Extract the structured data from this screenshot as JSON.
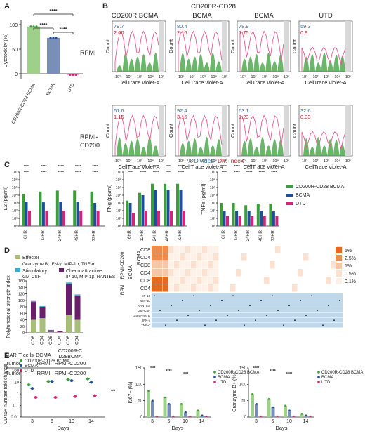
{
  "panel_letters": [
    "A",
    "B",
    "C",
    "D",
    "E"
  ],
  "colors": {
    "green": "#3a9e3a",
    "light_green": "#9fd08a",
    "blue": "#1f4e9a",
    "slate": "#7a8fb8",
    "magenta": "#d6237a",
    "pink": "#e8598f",
    "orange_dark": "#e66a1e",
    "orange_light": "#f6c7a6",
    "effector": "#a8bf7a",
    "chemo": "#6b1f6a",
    "stim": "#3fa9d8",
    "band_blue": "#bfd9ec",
    "axis": "#222222",
    "idx_blue": "#2a6db5",
    "idx_red": "#c0202c"
  },
  "panelA": {
    "ylabel": "Cytotoxicity (%)",
    "categories": [
      "CD200R-CD28 BCMA",
      "BCMA",
      "UTD"
    ],
    "yticks": [
      "100",
      "50",
      "0"
    ],
    "sig": [
      "****",
      "****",
      "****"
    ]
  },
  "panelB": {
    "top_title": "CD200R-CD28",
    "col_titles": [
      "CD200R BCMA",
      "BCMA",
      "BCMA",
      "UTD"
    ],
    "row_labels": [
      "RPMI",
      "RPMI-\nCD200"
    ],
    "xlabel": "CellTrace violet-A",
    "ylabel": "Count",
    "xticks": [
      "10¹",
      "10²",
      "10³",
      "10⁴",
      "10⁵"
    ],
    "blue_vals": [
      "79.7",
      "80.4",
      "78.9",
      "59.3",
      "61.6",
      "92.4",
      "63.1",
      "32.6"
    ],
    "red_vals": [
      "2.00",
      "2.16",
      "1.75",
      "0.9",
      "1.15",
      "3.15",
      "1.23",
      "0.33"
    ],
    "legend_divided": "% Divided",
    "legend_index": "Div. Index"
  },
  "panelC": {
    "ylabels": [
      "IL2 (pg/ml)",
      "IFNg (pg/ml)",
      "TNFa (pg/ml)"
    ],
    "times": [
      "6HR",
      "12HR",
      "24HR",
      "48HR",
      "72HR"
    ],
    "yticks": [
      "10⁷",
      "10⁶",
      "10⁵",
      "10⁴",
      "10³",
      "10²",
      "10¹",
      "10⁰"
    ],
    "legend": [
      "CD200R-CD28 BCMA",
      "BCMA",
      "UTD"
    ],
    "sig": "****"
  },
  "chart_data": [
    {
      "type": "bar",
      "panel": "A",
      "categories": [
        "CD200R-CD28 BCMA",
        "BCMA",
        "UTD"
      ],
      "values": [
        96,
        73,
        -2
      ],
      "ylabel": "Cytotoxicity (%)",
      "ylim": [
        -10,
        110
      ]
    },
    {
      "type": "bar",
      "panel": "C-IL2",
      "categories": [
        "6HR",
        "12HR",
        "24HR",
        "48HR",
        "72HR"
      ],
      "series": [
        {
          "name": "CD200R-CD28 BCMA",
          "values": [
            15000,
            30000,
            40000,
            40000,
            30000
          ]
        },
        {
          "name": "BCMA",
          "values": [
            1500,
            1200,
            1300,
            1500,
            1000
          ]
        },
        {
          "name": "UTD",
          "values": [
            100,
            100,
            100,
            100,
            100
          ]
        }
      ],
      "ylabel": "IL2 (pg/ml)",
      "ylim": [
        1,
        10000000
      ],
      "log": true
    },
    {
      "type": "bar",
      "panel": "C-IFNg",
      "categories": [
        "6HR",
        "12HR",
        "24HR",
        "48HR",
        "72HR"
      ],
      "series": [
        {
          "name": "CD200R-CD28 BCMA",
          "values": [
            2000,
            20000,
            300000,
            300000,
            300000
          ]
        },
        {
          "name": "BCMA",
          "values": [
            1000,
            10000,
            50000,
            50000,
            50000
          ]
        },
        {
          "name": "UTD",
          "values": [
            50,
            100,
            100,
            100,
            100
          ]
        }
      ],
      "ylabel": "IFNg (pg/ml)",
      "ylim": [
        1,
        10000000
      ],
      "log": true
    },
    {
      "type": "bar",
      "panel": "C-TNFa",
      "categories": [
        "6HR",
        "12HR",
        "24HR",
        "48HR",
        "72HR"
      ],
      "series": [
        {
          "name": "CD200R-CD28 BCMA",
          "values": [
            1000,
            1000,
            500,
            800,
            800
          ]
        },
        {
          "name": "BCMA",
          "values": [
            100,
            100,
            100,
            100,
            80
          ]
        },
        {
          "name": "UTD",
          "values": [
            20,
            20,
            20,
            20,
            20
          ]
        }
      ],
      "ylabel": "TNFa (pg/ml)",
      "ylim": [
        1,
        10000000
      ],
      "log": true
    },
    {
      "type": "bar",
      "panel": "D",
      "categories": [
        "CD8",
        "CD4",
        "CD8",
        "CD4",
        "CD8",
        "CD4"
      ],
      "series": [
        {
          "name": "Effector",
          "values": [
            40,
            45,
            3,
            2,
            55,
            40
          ]
        },
        {
          "name": "Chemoattractive",
          "values": [
            55,
            35,
            5,
            3,
            95,
            75
          ]
        },
        {
          "name": "Stimulatory",
          "values": [
            3,
            2,
            1,
            1,
            5,
            3
          ]
        }
      ],
      "ylabel": "Polyfunctional strength index",
      "ylim": [
        0,
        160
      ]
    },
    {
      "type": "scatter",
      "panel": "E-CD45",
      "x": [
        3,
        6,
        10,
        14
      ],
      "series": [
        {
          "name": "CD200R-CD28 BCMA",
          "values": [
            6,
            12,
            18,
            20
          ]
        },
        {
          "name": "BCMA",
          "values": [
            3,
            12,
            14,
            10
          ]
        },
        {
          "name": "UTD",
          "values": [
            0.5,
            0.5,
            0.6,
            0.7
          ]
        }
      ],
      "ylabel": "CD45+ number fold change",
      "xlabel": "Days",
      "ylim": [
        0.01,
        100
      ],
      "log": true
    },
    {
      "type": "bar",
      "panel": "E-Ki67",
      "categories": [
        "3",
        "6",
        "10",
        "14"
      ],
      "series": [
        {
          "name": "CD200R-CD28 BCMA",
          "values": [
            80,
            60,
            40,
            20
          ]
        },
        {
          "name": "BCMA",
          "values": [
            50,
            40,
            15,
            5
          ]
        },
        {
          "name": "UTD",
          "values": [
            2,
            2,
            2,
            2
          ]
        }
      ],
      "ylabel": "Ki67+ (%)",
      "xlabel": "Days",
      "ylim": [
        0,
        150
      ]
    },
    {
      "type": "bar",
      "panel": "E-GranzymeB",
      "categories": [
        "3",
        "6",
        "10",
        "14"
      ],
      "series": [
        {
          "name": "CD200R-CD28 BCMA",
          "values": [
            70,
            55,
            35,
            10
          ]
        },
        {
          "name": "BCMA",
          "values": [
            40,
            30,
            20,
            5
          ]
        },
        {
          "name": "UTD",
          "values": [
            2,
            2,
            2,
            2
          ]
        }
      ],
      "ylabel": "Granzyme B+ (%)",
      "xlabel": "Days",
      "ylim": [
        0,
        150
      ]
    }
  ],
  "panelD": {
    "legend": [
      {
        "name": "Effector",
        "detail": "Granzyme B, IFN-γ, MIP-1α, TNF-α"
      },
      {
        "name": "Stimulatory",
        "detail": "GM-CSF"
      },
      {
        "name": "Chemoattractive",
        "detail": "IP-10, MIP-1β, RANTES"
      }
    ],
    "ylabel": "Polyfunctional strength index",
    "yticks": [
      "160",
      "140",
      "120",
      "100",
      "80",
      "60",
      "40",
      "20",
      "0"
    ],
    "x_cells": [
      "CD8",
      "CD4",
      "CD8",
      "CD4",
      "CD8",
      "CD4"
    ],
    "cart_label": "CAR-T cells",
    "cart_groups": [
      "BCMA",
      "CD200R-CD28BCMA"
    ],
    "tumor_label": "Tumor",
    "tumor_row1": [
      "RPMI",
      "RPMI-CD200"
    ],
    "tumor_row2": [
      "RPMI",
      "RPMI-CD200"
    ],
    "heat_row_labels": [
      "CD8",
      "CD4",
      "CD8",
      "CD4",
      "CD8",
      "CD4"
    ],
    "heat_group_labels": [
      "BCMA, CD200R CD28",
      "BCMA",
      "RPMI-CD200",
      "RPMI"
    ],
    "heat_legend": [
      "5%",
      "2.5%",
      "1%",
      "0.5%",
      "0.1%"
    ],
    "cytokines": [
      "IP-10",
      "MIP-1α",
      "RANTES",
      "GM-CSF",
      "Granzyme B",
      "IFN-γ",
      "TNF-α"
    ]
  },
  "panelE": {
    "legend": [
      "CD200R-CD28 BCMA",
      "BCMA",
      "UTD"
    ],
    "xlabel": "Days",
    "days": [
      "3",
      "6",
      "10",
      "14"
    ],
    "ylabels": [
      "CD45+ number fold change",
      "Ki67+ (%)",
      "Granzyme B+ (%)"
    ],
    "log_ticks": [
      "100",
      "10",
      "1",
      "0.1",
      "0.01"
    ],
    "pct_ticks": [
      "150",
      "100",
      "50",
      "0"
    ],
    "sig_side": "**",
    "sig": "****"
  }
}
